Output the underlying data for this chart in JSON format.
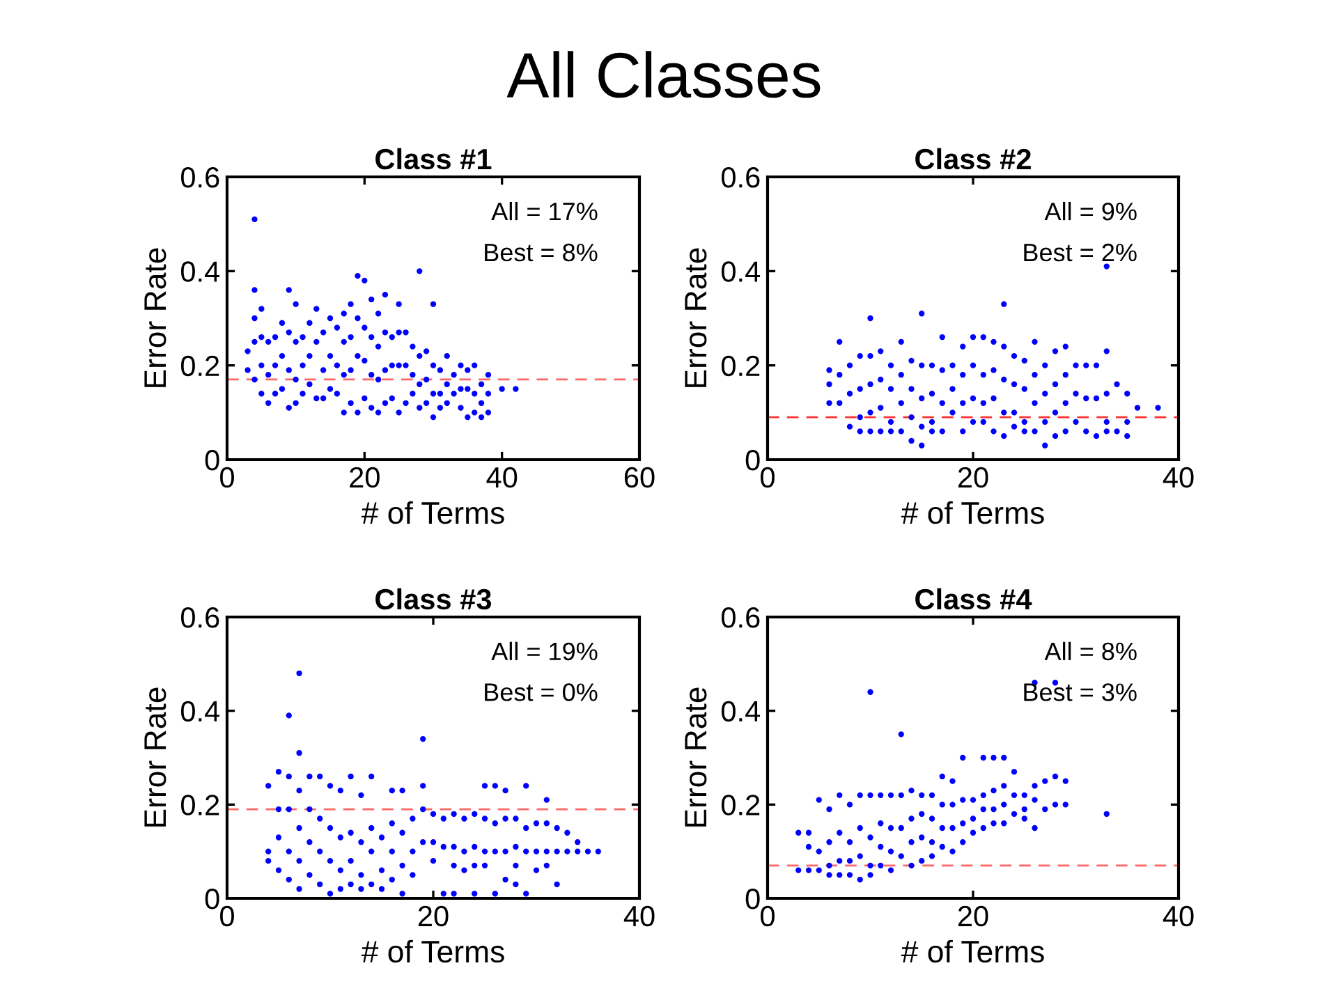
{
  "chart_data": [
    {
      "type": "other",
      "title": "All Classes"
    },
    {
      "type": "scatter",
      "title": "Class #1",
      "xlabel": "# of Terms",
      "ylabel": "Error Rate",
      "color": "#0000ff",
      "marker": "circle",
      "xlim": [
        0,
        60
      ],
      "ylim": [
        0,
        0.6
      ],
      "xticks": [
        0,
        20,
        40,
        60
      ],
      "yticks": [
        0,
        0.2,
        0.4,
        0.6
      ],
      "annotations": [
        "All = 17%",
        "Best = 8%"
      ],
      "ref_lines": [
        {
          "axis": "y",
          "value": 0.17,
          "color": "#ff6666",
          "line_style": "dashed"
        }
      ],
      "x": [
        3,
        3,
        4,
        4,
        4,
        4,
        4,
        5,
        5,
        5,
        5,
        6,
        6,
        6,
        7,
        7,
        7,
        8,
        8,
        8,
        9,
        9,
        9,
        9,
        10,
        10,
        10,
        10,
        11,
        11,
        11,
        12,
        12,
        12,
        13,
        13,
        13,
        14,
        14,
        14,
        15,
        15,
        15,
        16,
        16,
        16,
        17,
        17,
        17,
        17,
        18,
        18,
        18,
        18,
        19,
        19,
        19,
        19,
        20,
        20,
        20,
        20,
        21,
        21,
        21,
        21,
        22,
        22,
        22,
        22,
        23,
        23,
        23,
        23,
        24,
        24,
        24,
        25,
        25,
        25,
        25,
        26,
        26,
        26,
        27,
        27,
        27,
        28,
        28,
        28,
        28,
        29,
        29,
        29,
        30,
        30,
        30,
        30,
        31,
        31,
        31,
        32,
        32,
        32,
        33,
        33,
        34,
        34,
        34,
        35,
        35,
        35,
        36,
        36,
        36,
        37,
        37,
        37,
        38,
        38,
        38,
        40,
        42
      ],
      "values": [
        0.19,
        0.23,
        0.51,
        0.36,
        0.3,
        0.25,
        0.17,
        0.32,
        0.26,
        0.2,
        0.14,
        0.25,
        0.18,
        0.12,
        0.26,
        0.2,
        0.14,
        0.29,
        0.22,
        0.15,
        0.36,
        0.27,
        0.19,
        0.11,
        0.33,
        0.25,
        0.17,
        0.12,
        0.26,
        0.2,
        0.14,
        0.29,
        0.22,
        0.16,
        0.32,
        0.25,
        0.13,
        0.27,
        0.19,
        0.13,
        0.3,
        0.22,
        0.15,
        0.28,
        0.2,
        0.14,
        0.31,
        0.25,
        0.18,
        0.1,
        0.33,
        0.26,
        0.19,
        0.12,
        0.39,
        0.3,
        0.22,
        0.1,
        0.38,
        0.28,
        0.21,
        0.13,
        0.34,
        0.26,
        0.18,
        0.11,
        0.31,
        0.24,
        0.17,
        0.1,
        0.35,
        0.27,
        0.19,
        0.12,
        0.26,
        0.2,
        0.13,
        0.33,
        0.27,
        0.2,
        0.1,
        0.27,
        0.2,
        0.12,
        0.24,
        0.18,
        0.14,
        0.4,
        0.22,
        0.16,
        0.11,
        0.23,
        0.17,
        0.12,
        0.33,
        0.2,
        0.14,
        0.09,
        0.19,
        0.14,
        0.11,
        0.22,
        0.16,
        0.12,
        0.18,
        0.14,
        0.2,
        0.15,
        0.11,
        0.19,
        0.15,
        0.09,
        0.2,
        0.14,
        0.1,
        0.16,
        0.12,
        0.09,
        0.18,
        0.14,
        0.1,
        0.15,
        0.15
      ]
    },
    {
      "type": "scatter",
      "title": "Class #2",
      "xlabel": "# of Terms",
      "ylabel": "Error Rate",
      "color": "#0000ff",
      "marker": "circle",
      "xlim": [
        0,
        40
      ],
      "ylim": [
        0,
        0.6
      ],
      "xticks": [
        0,
        20,
        40
      ],
      "yticks": [
        0,
        0.2,
        0.4,
        0.6
      ],
      "annotations": [
        "All = 9%",
        "Best = 2%"
      ],
      "ref_lines": [
        {
          "axis": "y",
          "value": 0.09,
          "color": "#ff3333",
          "line_style": "dashed"
        }
      ],
      "x": [
        6,
        6,
        6,
        7,
        7,
        7,
        8,
        8,
        8,
        9,
        9,
        9,
        9,
        10,
        10,
        10,
        10,
        10,
        11,
        11,
        11,
        11,
        12,
        12,
        12,
        12,
        13,
        13,
        13,
        13,
        14,
        14,
        14,
        14,
        15,
        15,
        15,
        15,
        15,
        16,
        16,
        16,
        16,
        17,
        17,
        17,
        17,
        18,
        18,
        18,
        19,
        19,
        19,
        19,
        20,
        20,
        20,
        20,
        21,
        21,
        21,
        21,
        22,
        22,
        22,
        22,
        23,
        23,
        23,
        23,
        23,
        24,
        24,
        24,
        24,
        25,
        25,
        25,
        25,
        26,
        26,
        26,
        26,
        27,
        27,
        27,
        27,
        28,
        28,
        28,
        28,
        29,
        29,
        29,
        29,
        30,
        30,
        30,
        31,
        31,
        31,
        32,
        32,
        32,
        33,
        33,
        33,
        33,
        33,
        34,
        34,
        35,
        35,
        35,
        36,
        38
      ],
      "values": [
        0.19,
        0.16,
        0.12,
        0.25,
        0.18,
        0.12,
        0.2,
        0.14,
        0.07,
        0.22,
        0.15,
        0.09,
        0.06,
        0.3,
        0.22,
        0.16,
        0.1,
        0.06,
        0.23,
        0.17,
        0.11,
        0.06,
        0.2,
        0.15,
        0.08,
        0.06,
        0.25,
        0.18,
        0.12,
        0.06,
        0.21,
        0.15,
        0.09,
        0.04,
        0.31,
        0.2,
        0.13,
        0.07,
        0.03,
        0.2,
        0.14,
        0.08,
        0.06,
        0.26,
        0.19,
        0.12,
        0.06,
        0.2,
        0.15,
        0.1,
        0.24,
        0.18,
        0.12,
        0.06,
        0.26,
        0.2,
        0.13,
        0.08,
        0.26,
        0.18,
        0.12,
        0.08,
        0.25,
        0.19,
        0.13,
        0.06,
        0.33,
        0.24,
        0.17,
        0.1,
        0.05,
        0.22,
        0.16,
        0.1,
        0.07,
        0.21,
        0.15,
        0.08,
        0.06,
        0.25,
        0.18,
        0.12,
        0.06,
        0.2,
        0.14,
        0.08,
        0.03,
        0.23,
        0.16,
        0.1,
        0.05,
        0.24,
        0.18,
        0.12,
        0.06,
        0.2,
        0.14,
        0.08,
        0.2,
        0.13,
        0.06,
        0.2,
        0.13,
        0.05,
        0.41,
        0.23,
        0.14,
        0.08,
        0.06,
        0.16,
        0.06,
        0.14,
        0.08,
        0.05,
        0.11,
        0.11
      ]
    },
    {
      "type": "scatter",
      "title": "Class #3",
      "xlabel": "# of Terms",
      "ylabel": "Error Rate",
      "color": "#0000ff",
      "marker": "circle",
      "xlim": [
        0,
        40
      ],
      "ylim": [
        0,
        0.6
      ],
      "xticks": [
        0,
        20,
        40
      ],
      "yticks": [
        0,
        0.2,
        0.4,
        0.6
      ],
      "annotations": [
        "All = 19%",
        "Best = 0%"
      ],
      "ref_lines": [
        {
          "axis": "y",
          "value": 0.19,
          "color": "#ff6666",
          "line_style": "dashed"
        }
      ],
      "x": [
        4,
        4,
        4,
        5,
        5,
        5,
        5,
        6,
        6,
        6,
        6,
        6,
        7,
        7,
        7,
        7,
        7,
        7,
        8,
        8,
        8,
        8,
        9,
        9,
        9,
        9,
        10,
        10,
        10,
        10,
        11,
        11,
        11,
        11,
        12,
        12,
        12,
        12,
        13,
        13,
        13,
        13,
        14,
        14,
        14,
        14,
        15,
        15,
        15,
        16,
        16,
        16,
        16,
        17,
        17,
        17,
        17,
        18,
        18,
        18,
        19,
        19,
        19,
        19,
        20,
        20,
        20,
        21,
        21,
        21,
        22,
        22,
        22,
        22,
        23,
        23,
        23,
        24,
        24,
        24,
        24,
        25,
        25,
        25,
        25,
        26,
        26,
        26,
        26,
        27,
        27,
        27,
        27,
        28,
        28,
        28,
        28,
        29,
        29,
        29,
        29,
        30,
        30,
        30,
        31,
        31,
        31,
        31,
        32,
        32,
        32,
        33,
        33,
        34,
        34,
        35,
        36
      ],
      "values": [
        0.24,
        0.1,
        0.08,
        0.27,
        0.19,
        0.13,
        0.06,
        0.39,
        0.26,
        0.19,
        0.1,
        0.04,
        0.48,
        0.31,
        0.23,
        0.15,
        0.08,
        0.02,
        0.26,
        0.19,
        0.12,
        0.05,
        0.26,
        0.17,
        0.1,
        0.03,
        0.24,
        0.15,
        0.08,
        0.01,
        0.23,
        0.13,
        0.06,
        0.02,
        0.26,
        0.14,
        0.08,
        0.03,
        0.22,
        0.12,
        0.05,
        0.02,
        0.26,
        0.15,
        0.1,
        0.03,
        0.13,
        0.06,
        0.02,
        0.23,
        0.16,
        0.1,
        0.04,
        0.23,
        0.14,
        0.07,
        0.01,
        0.17,
        0.1,
        0.05,
        0.34,
        0.24,
        0.19,
        0.12,
        0.18,
        0.12,
        0.08,
        0.17,
        0.11,
        0.01,
        0.18,
        0.11,
        0.07,
        0.01,
        0.17,
        0.1,
        0.06,
        0.18,
        0.11,
        0.07,
        0.01,
        0.24,
        0.17,
        0.1,
        0.07,
        0.24,
        0.16,
        0.1,
        0.01,
        0.23,
        0.17,
        0.1,
        0.04,
        0.17,
        0.11,
        0.07,
        0.03,
        0.24,
        0.15,
        0.1,
        0.01,
        0.16,
        0.1,
        0.06,
        0.21,
        0.16,
        0.1,
        0.07,
        0.15,
        0.1,
        0.03,
        0.14,
        0.1,
        0.12,
        0.1,
        0.1,
        0.1
      ]
    },
    {
      "type": "scatter",
      "title": "Class #4",
      "xlabel": "# of Terms",
      "ylabel": "Error Rate",
      "color": "#0000ff",
      "marker": "circle",
      "xlim": [
        0,
        40
      ],
      "ylim": [
        0,
        0.6
      ],
      "xticks": [
        0,
        20,
        40
      ],
      "yticks": [
        0,
        0.2,
        0.4,
        0.6
      ],
      "annotations": [
        "All = 8%",
        "Best = 3%"
      ],
      "ref_lines": [
        {
          "axis": "y",
          "value": 0.07,
          "color": "#ff6666",
          "line_style": "dashed"
        }
      ],
      "x": [
        3,
        3,
        4,
        4,
        4,
        5,
        5,
        5,
        6,
        6,
        6,
        6,
        7,
        7,
        7,
        7,
        8,
        8,
        8,
        8,
        9,
        9,
        9,
        9,
        10,
        10,
        10,
        10,
        10,
        11,
        11,
        11,
        11,
        12,
        12,
        12,
        12,
        13,
        13,
        13,
        13,
        14,
        14,
        14,
        14,
        15,
        15,
        15,
        15,
        16,
        16,
        16,
        16,
        17,
        17,
        17,
        17,
        18,
        18,
        18,
        18,
        19,
        19,
        19,
        19,
        20,
        20,
        20,
        21,
        21,
        21,
        21,
        22,
        22,
        22,
        22,
        23,
        23,
        23,
        23,
        24,
        24,
        24,
        25,
        25,
        25,
        26,
        26,
        26,
        26,
        27,
        27,
        28,
        28,
        28,
        29,
        29,
        33
      ],
      "values": [
        0.14,
        0.06,
        0.14,
        0.11,
        0.06,
        0.21,
        0.1,
        0.06,
        0.19,
        0.12,
        0.07,
        0.05,
        0.22,
        0.14,
        0.08,
        0.05,
        0.2,
        0.12,
        0.08,
        0.05,
        0.22,
        0.15,
        0.09,
        0.04,
        0.44,
        0.22,
        0.13,
        0.07,
        0.05,
        0.22,
        0.16,
        0.11,
        0.07,
        0.22,
        0.15,
        0.1,
        0.06,
        0.35,
        0.22,
        0.15,
        0.09,
        0.23,
        0.17,
        0.12,
        0.07,
        0.22,
        0.18,
        0.13,
        0.08,
        0.22,
        0.17,
        0.12,
        0.09,
        0.26,
        0.2,
        0.15,
        0.11,
        0.25,
        0.2,
        0.15,
        0.1,
        0.3,
        0.21,
        0.16,
        0.12,
        0.21,
        0.17,
        0.14,
        0.3,
        0.22,
        0.19,
        0.15,
        0.3,
        0.23,
        0.19,
        0.16,
        0.3,
        0.24,
        0.2,
        0.16,
        0.27,
        0.22,
        0.18,
        0.22,
        0.19,
        0.17,
        0.46,
        0.24,
        0.21,
        0.15,
        0.25,
        0.19,
        0.46,
        0.26,
        0.2,
        0.25,
        0.2,
        0.18
      ]
    }
  ]
}
